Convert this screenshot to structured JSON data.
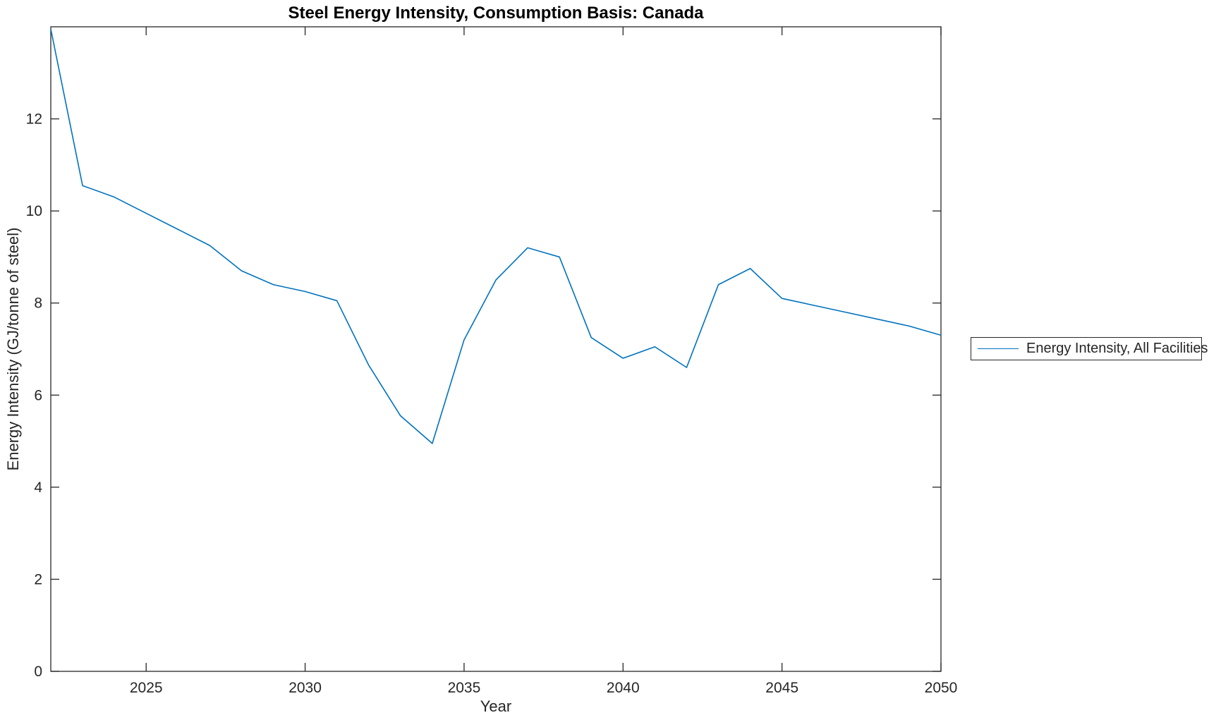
{
  "chart_data": {
    "type": "line",
    "title": "Steel Energy Intensity, Consumption Basis: Canada",
    "xlabel": "Year",
    "ylabel": "Energy Intensity (GJ/tonne of steel)",
    "xlim": [
      2022,
      2050
    ],
    "ylim": [
      0,
      14
    ],
    "x_ticks": [
      2025,
      2030,
      2035,
      2040,
      2045,
      2050
    ],
    "y_ticks": [
      0,
      2,
      4,
      6,
      8,
      10,
      12
    ],
    "grid": false,
    "legend_position": "right-outside",
    "series": [
      {
        "name": "Energy Intensity, All Facilities",
        "color": "#0072BD",
        "x": [
          2022,
          2023,
          2024,
          2025,
          2026,
          2027,
          2028,
          2029,
          2030,
          2031,
          2032,
          2033,
          2034,
          2035,
          2036,
          2037,
          2038,
          2039,
          2040,
          2041,
          2042,
          2043,
          2044,
          2045,
          2046,
          2047,
          2048,
          2049,
          2050
        ],
        "values": [
          13.95,
          10.55,
          10.3,
          9.95,
          9.6,
          9.25,
          8.7,
          8.4,
          8.25,
          8.05,
          6.65,
          5.55,
          4.95,
          7.2,
          8.5,
          9.2,
          9.0,
          7.25,
          6.8,
          7.05,
          6.6,
          8.4,
          8.75,
          8.1,
          7.95,
          7.8,
          7.65,
          7.5,
          7.3
        ]
      }
    ]
  },
  "colors": {
    "axis": "#262626",
    "background": "#ffffff",
    "line": "#0072BD"
  }
}
